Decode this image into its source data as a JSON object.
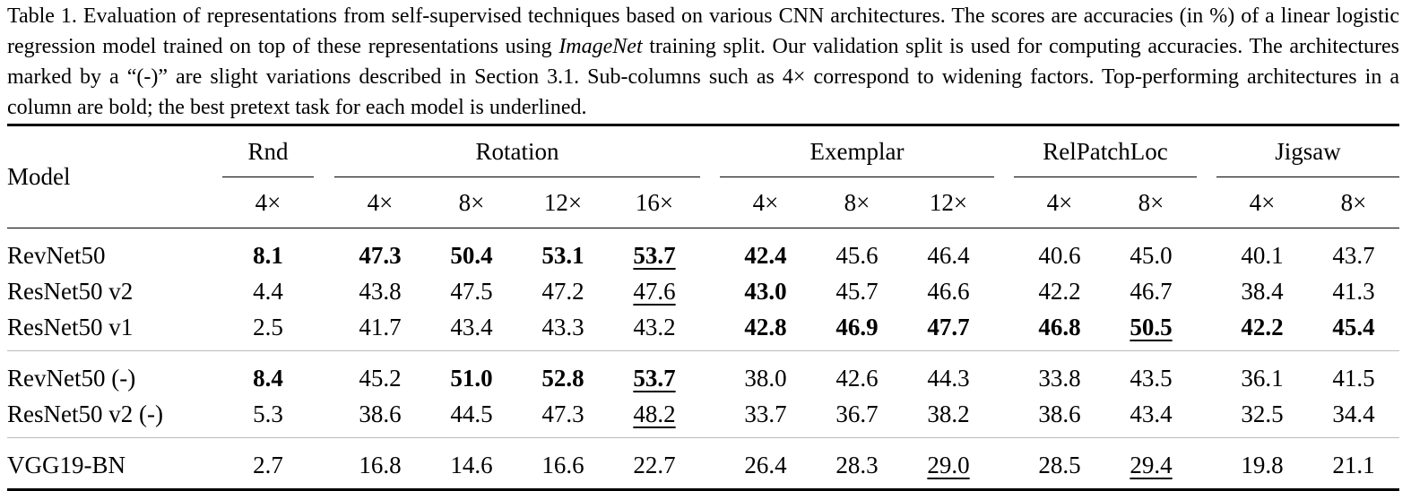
{
  "caption": {
    "before": "Table 1. Evaluation of representations from self-supervised techniques based on various CNN architectures. The scores are accuracies (in %) of a linear logistic regression model trained on top of these representations using ",
    "emphasis": "ImageNet",
    "after": " training split. Our validation split is used for computing accuracies. The architectures marked by a “(-)” are slight variations described in Section 3.1. Sub-columns such as 4× correspond to widening factors. Top-performing architectures in a column are bold; the best pretext task for each model is underlined."
  },
  "table": {
    "model_header": "Model",
    "groups": [
      {
        "name": "Rnd",
        "columns": [
          "4×"
        ]
      },
      {
        "name": "Rotation",
        "columns": [
          "4×",
          "8×",
          "12×",
          "16×"
        ]
      },
      {
        "name": "Exemplar",
        "columns": [
          "4×",
          "8×",
          "12×"
        ]
      },
      {
        "name": "RelPatchLoc",
        "columns": [
          "4×",
          "8×"
        ]
      },
      {
        "name": "Jigsaw",
        "columns": [
          "4×",
          "8×"
        ]
      }
    ],
    "rows": [
      [
        "RevNet50",
        "8.1",
        "47.3",
        "50.4",
        "53.1",
        "53.7",
        "42.4",
        "45.6",
        "46.4",
        "40.6",
        "45.0",
        "40.1",
        "43.7"
      ],
      [
        "ResNet50 v2",
        "4.4",
        "43.8",
        "47.5",
        "47.2",
        "47.6",
        "43.0",
        "45.7",
        "46.6",
        "42.2",
        "46.7",
        "38.4",
        "41.3"
      ],
      [
        "ResNet50 v1",
        "2.5",
        "41.7",
        "43.4",
        "43.3",
        "43.2",
        "42.8",
        "46.9",
        "47.7",
        "46.8",
        "50.5",
        "42.2",
        "45.4"
      ],
      [
        "RevNet50 (-)",
        "8.4",
        "45.2",
        "51.0",
        "52.8",
        "53.7",
        "38.0",
        "42.6",
        "44.3",
        "33.8",
        "43.5",
        "36.1",
        "41.5"
      ],
      [
        "ResNet50 v2 (-)",
        "5.3",
        "38.6",
        "44.5",
        "47.3",
        "48.2",
        "33.7",
        "36.7",
        "38.2",
        "38.6",
        "43.4",
        "32.5",
        "34.4"
      ],
      [
        "VGG19-BN",
        "2.7",
        "16.8",
        "14.6",
        "16.6",
        "22.7",
        "26.4",
        "28.3",
        "29.0",
        "28.5",
        "29.4",
        "19.8",
        "21.1"
      ]
    ]
  }
}
